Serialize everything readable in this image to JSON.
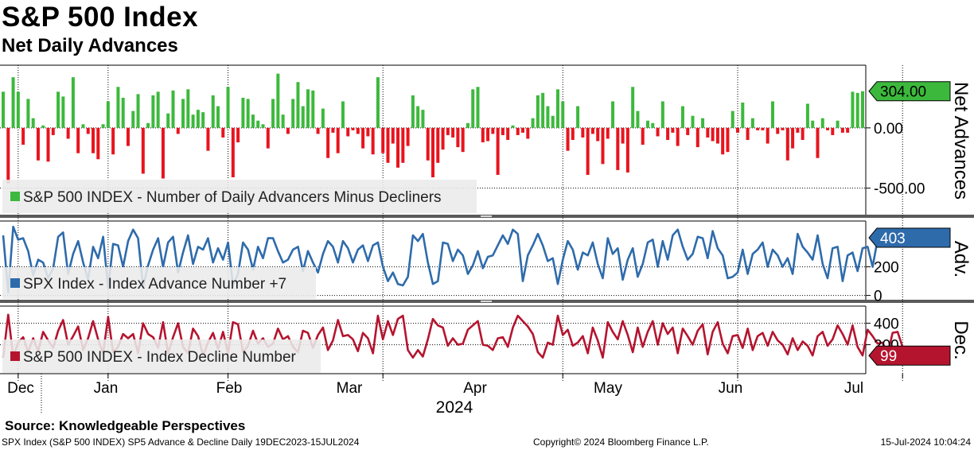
{
  "title": "S&P 500 Index",
  "subtitle": "Net Daily Advances",
  "source": "Source: Knowledgeable Perspectives",
  "footer": {
    "left": "SPX Index (S&P 500 INDEX) SP5 Advance & Decline  Daily 19DEC2023-15JUL2024",
    "center": "Copyright© 2024 Bloomberg Finance L.P.",
    "right": "15-Jul-2024 10:04:24"
  },
  "x_axis": {
    "months": [
      "Dec",
      "Jan",
      "Feb",
      "Mar",
      "Apr",
      "May",
      "Jun",
      "Jul"
    ],
    "year": "2024"
  },
  "chart_data": [
    {
      "type": "bar",
      "name": "net-advances",
      "title": "Net Advances",
      "legend": "S&P 500 INDEX - Number of Daily Advancers Minus Decliners",
      "ylabel": "Net Advances",
      "ylim": [
        -720,
        520
      ],
      "yticks": [
        0,
        -500
      ],
      "ytick_labels": [
        "0.00",
        "-500.00"
      ],
      "last_value": 304,
      "last_label": "304.00",
      "colors": {
        "positive": "#3cb93c",
        "negative": "#e8141e",
        "tag": "#3cb93c"
      },
      "values": [
        300,
        -460,
        420,
        300,
        -140,
        240,
        80,
        -270,
        20,
        -280,
        -60,
        300,
        260,
        -90,
        420,
        -210,
        30,
        -50,
        -210,
        -260,
        30,
        220,
        -220,
        340,
        250,
        -150,
        140,
        280,
        -380,
        40,
        270,
        300,
        -420,
        120,
        310,
        -50,
        240,
        320,
        110,
        150,
        130,
        -190,
        270,
        180,
        -80,
        340,
        -410,
        -120,
        250,
        240,
        110,
        60,
        30,
        -170,
        240,
        450,
        110,
        -50,
        240,
        380,
        180,
        320,
        310,
        -50,
        160,
        -250,
        -40,
        -210,
        220,
        -70,
        -20,
        -50,
        -170,
        -70,
        -220,
        420,
        -210,
        -290,
        -130,
        -330,
        -290,
        -150,
        270,
        180,
        150,
        -270,
        -410,
        -290,
        -180,
        -60,
        -80,
        -160,
        -200,
        40,
        320,
        340,
        -120,
        -110,
        -50,
        -390,
        -60,
        -100,
        20,
        -60,
        -40,
        -90,
        80,
        270,
        290,
        180,
        100,
        320,
        220,
        -190,
        -100,
        180,
        -80,
        -390,
        -50,
        -110,
        -300,
        -90,
        220,
        -350,
        -130,
        -370,
        340,
        140,
        -140,
        60,
        40,
        -70,
        220,
        -100,
        -40,
        -150,
        180,
        -60,
        100,
        -160,
        80,
        -80,
        -110,
        -130,
        -220,
        -200,
        140,
        -40,
        210,
        -100,
        80,
        -20,
        -20,
        -130,
        220,
        -50,
        -20,
        -270,
        -170,
        -40,
        -100,
        200,
        60,
        -250,
        80,
        -20,
        -60,
        60,
        -40,
        -40,
        300,
        290,
        304
      ],
      "x_index_ticks": [
        3,
        21,
        45,
        76,
        112,
        147,
        180,
        206
      ]
    },
    {
      "type": "line",
      "name": "advance-number",
      "title": "Adv.",
      "legend": "SPX Index - Index Advance Number +7",
      "ylabel": "Adv.",
      "ylim": [
        -30,
        520
      ],
      "yticks": [
        0,
        200
      ],
      "ytick_labels": [
        "0",
        "200"
      ],
      "last_value": 403,
      "last_label": "403",
      "colors": {
        "line": "#2e6bab",
        "tag": "#2e6bab"
      },
      "values": [
        420,
        20,
        480,
        390,
        400,
        310,
        140,
        250,
        230,
        120,
        190,
        410,
        440,
        150,
        290,
        380,
        230,
        110,
        340,
        260,
        410,
        50,
        360,
        350,
        200,
        380,
        460,
        400,
        60,
        210,
        320,
        400,
        200,
        370,
        410,
        160,
        300,
        420,
        220,
        340,
        320,
        400,
        230,
        330,
        250,
        370,
        70,
        150,
        370,
        320,
        180,
        340,
        260,
        400,
        400,
        310,
        230,
        250,
        320,
        340,
        170,
        310,
        230,
        160,
        290,
        380,
        340,
        230,
        380,
        330,
        230,
        320,
        350,
        240,
        350,
        370,
        200,
        100,
        160,
        80,
        70,
        130,
        420,
        380,
        430,
        230,
        80,
        100,
        370,
        360,
        240,
        320,
        280,
        150,
        210,
        310,
        190,
        270,
        280,
        350,
        420,
        360,
        460,
        430,
        100,
        280,
        350,
        430,
        350,
        240,
        260,
        80,
        250,
        380,
        320,
        180,
        300,
        280,
        370,
        220,
        120,
        400,
        290,
        330,
        110,
        250,
        330,
        130,
        220,
        370,
        390,
        200,
        380,
        250,
        420,
        460,
        340,
        250,
        290,
        410,
        400,
        260,
        450,
        330,
        280,
        120,
        130,
        160,
        320,
        150,
        290,
        320,
        370,
        200,
        320,
        280,
        200,
        260,
        150,
        430,
        340,
        300,
        250,
        420,
        220,
        120,
        330,
        340,
        100,
        280,
        300,
        170,
        330,
        340,
        200,
        390,
        410,
        403
      ]
    },
    {
      "type": "line",
      "name": "decline-number",
      "title": "Dec.",
      "legend": "S&P 500 INDEX - Index Decline Number",
      "ylabel": "Dec.",
      "ylim": [
        -70,
        560
      ],
      "yticks": [
        200,
        400
      ],
      "ytick_labels": [
        "200",
        "400"
      ],
      "last_value": 99,
      "last_label": "99",
      "colors": {
        "line": "#b5142f",
        "tag": "#b5142f"
      },
      "values": [
        80,
        480,
        90,
        220,
        270,
        130,
        260,
        140,
        320,
        240,
        170,
        330,
        430,
        200,
        280,
        370,
        150,
        260,
        420,
        250,
        120,
        460,
        130,
        180,
        300,
        260,
        300,
        120,
        400,
        300,
        270,
        170,
        410,
        120,
        270,
        400,
        180,
        120,
        350,
        280,
        100,
        220,
        310,
        160,
        320,
        120,
        410,
        390,
        130,
        190,
        330,
        210,
        260,
        180,
        210,
        350,
        250,
        280,
        180,
        130,
        330,
        310,
        170,
        290,
        360,
        150,
        240,
        430,
        280,
        290,
        250,
        140,
        310,
        260,
        120,
        470,
        250,
        420,
        290,
        440,
        470,
        150,
        80,
        150,
        90,
        250,
        440,
        380,
        360,
        190,
        260,
        200,
        210,
        340,
        380,
        420,
        200,
        190,
        150,
        260,
        270,
        180,
        360,
        470,
        420,
        370,
        300,
        130,
        80,
        220,
        200,
        470,
        290,
        340,
        190,
        220,
        280,
        120,
        360,
        240,
        80,
        410,
        320,
        250,
        420,
        290,
        130,
        360,
        180,
        320,
        420,
        200,
        400,
        300,
        360,
        120,
        350,
        280,
        200,
        330,
        390,
        110,
        320,
        410,
        210,
        120,
        280,
        290,
        170,
        350,
        150,
        280,
        310,
        190,
        320,
        240,
        200,
        110,
        260,
        150,
        230,
        190,
        100,
        280,
        320,
        190,
        250,
        380,
        300,
        200,
        380,
        180,
        100,
        340,
        280,
        210,
        220,
        110,
        310,
        320,
        180,
        100,
        120,
        99
      ]
    }
  ]
}
